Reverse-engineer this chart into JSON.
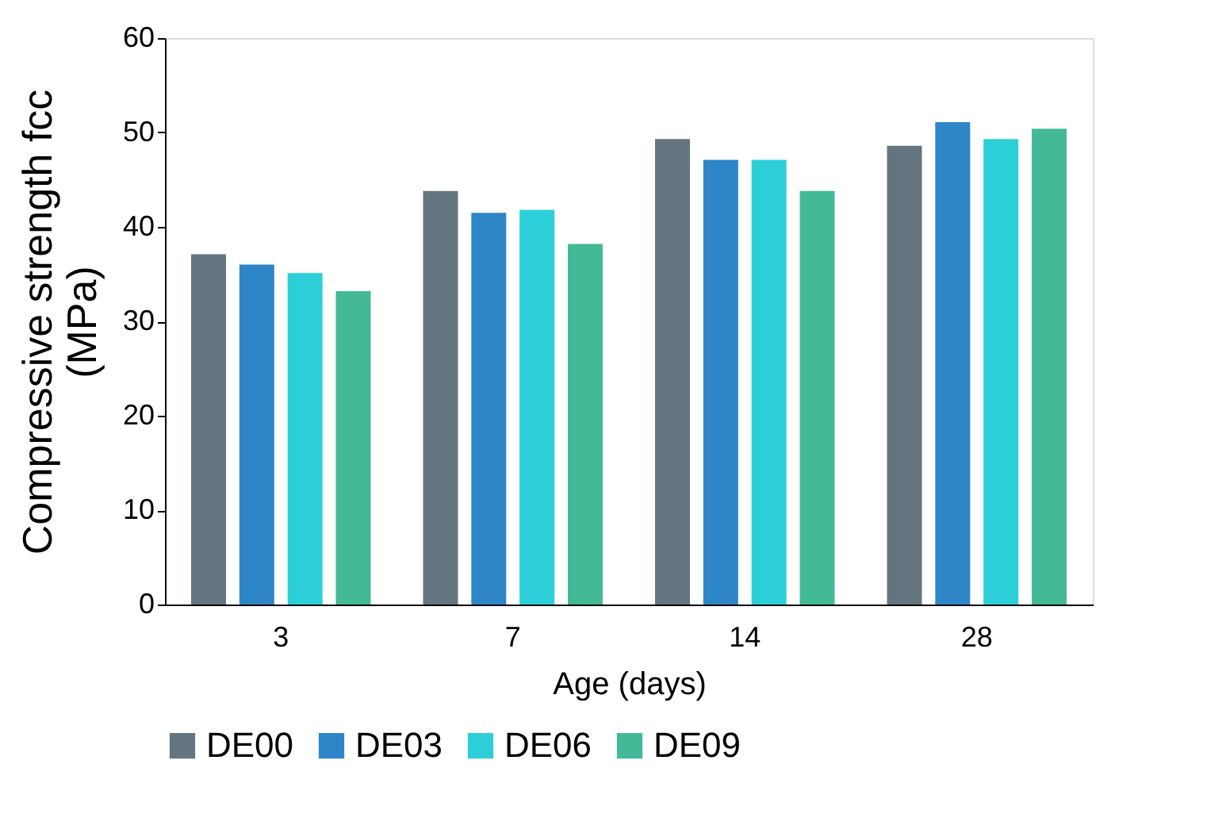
{
  "chart_data": {
    "type": "bar",
    "xlabel": "Age (days)",
    "ylabel": "Compressive strength fcc (MPa)",
    "categories": [
      "3",
      "7",
      "14",
      "28"
    ],
    "series": [
      {
        "name": "DE00",
        "color": "#647580",
        "values": [
          37.1,
          43.8,
          49.3,
          48.6
        ]
      },
      {
        "name": "DE03",
        "color": "#2e86c8",
        "values": [
          36.0,
          41.5,
          47.1,
          51.1
        ]
      },
      {
        "name": "DE06",
        "color": "#2ccfd8",
        "values": [
          35.1,
          41.8,
          47.1,
          49.3
        ]
      },
      {
        "name": "DE09",
        "color": "#44b998",
        "values": [
          33.2,
          38.2,
          43.8,
          50.4
        ]
      }
    ],
    "ylim": [
      0,
      60
    ],
    "yticks": [
      0,
      10,
      20,
      30,
      40,
      50,
      60
    ],
    "grid": false,
    "legend": "bottom"
  }
}
